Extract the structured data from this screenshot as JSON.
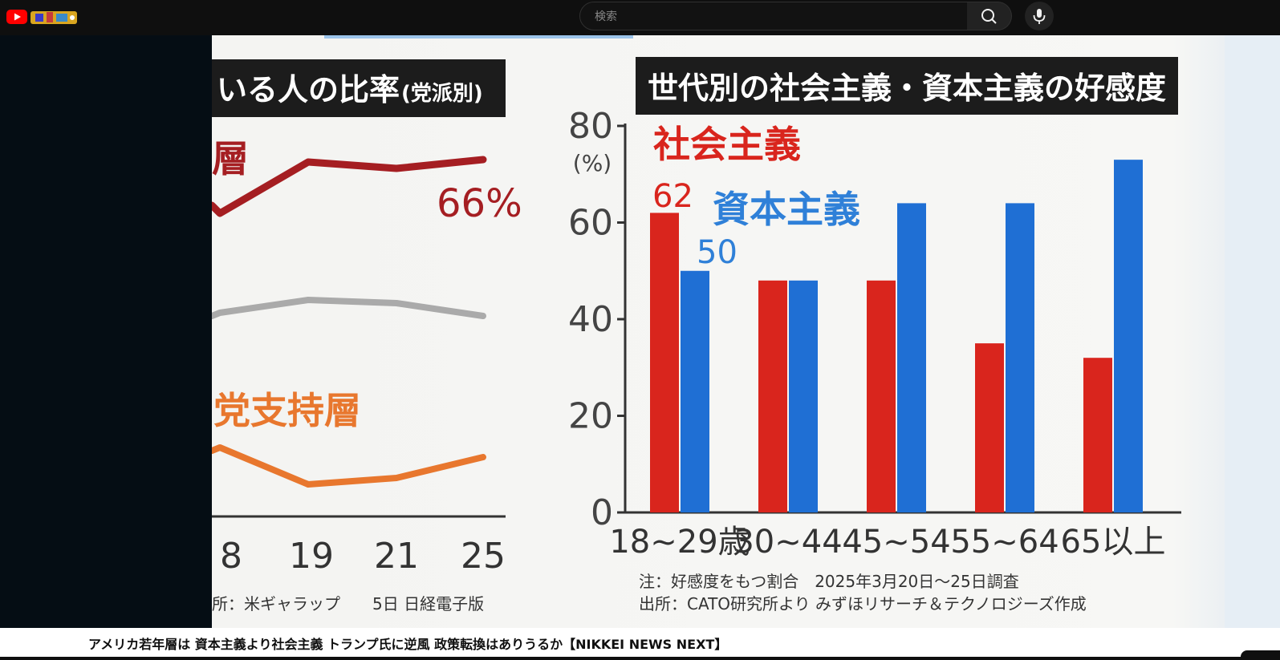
{
  "search": {
    "placeholder": "検索"
  },
  "video_title": "アメリカ若年層は 資本主義より社会主義 トランプ氏に逆風 政策転換はありうるか【NIKKEI NEWS NEXT】",
  "left_chart": {
    "heading": "いる人の比率",
    "heading_suffix": "(党派別)",
    "red_label": "層",
    "red_value_label": "66%",
    "orange_label": "党支持層",
    "x_ticks": [
      "8",
      "19",
      "21",
      "25"
    ],
    "source": "所：米ギャラップ　　5日 日経電子版",
    "colors": {
      "red": "#a51e22",
      "gray": "#aaaaaa",
      "orange": "#e8772e"
    }
  },
  "chart_data": {
    "type": "bar",
    "title": "世代別の社会主義・資本主義の好感度",
    "ylabel": "(%)",
    "ylim": [
      0,
      80
    ],
    "yticks": [
      "0",
      "20",
      "40",
      "60",
      "80"
    ],
    "categories": [
      "18~29歳",
      "30~44",
      "45~54",
      "55~64",
      "65以上"
    ],
    "series": [
      {
        "name": "社会主義",
        "color": "#d9251d",
        "values": [
          62,
          48,
          48,
          35,
          32
        ]
      },
      {
        "name": "資本主義",
        "color": "#1f6fd4",
        "values": [
          50,
          48,
          64,
          64,
          73
        ]
      }
    ],
    "data_labels": [
      "62",
      "50"
    ],
    "note": "注：好感度をもつ割合　2025年3月20日～25日調査",
    "source": "出所：CATO研究所より みずほリサーチ＆テクノロジーズ作成"
  }
}
